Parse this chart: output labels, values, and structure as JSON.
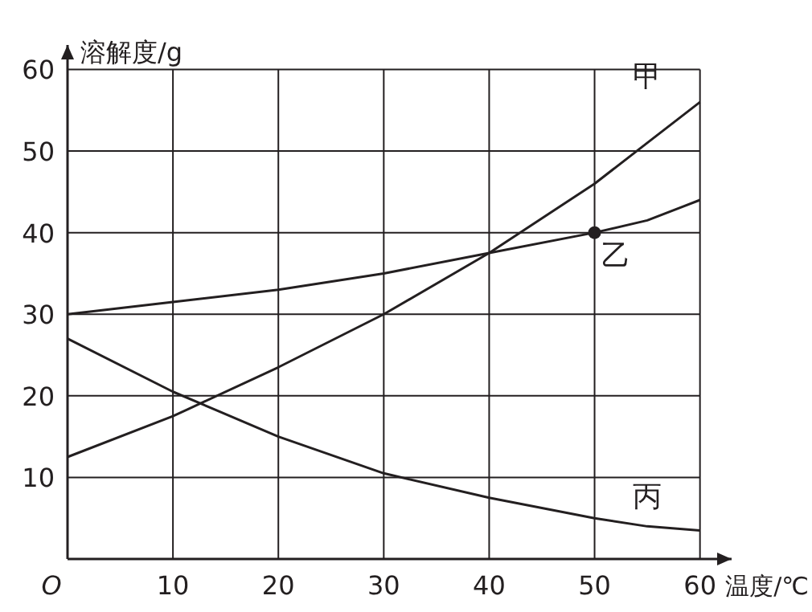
{
  "chart_data": {
    "type": "line",
    "ylabel": "溶解度/g",
    "xlabel": "温度/℃",
    "x": [
      0,
      10,
      20,
      30,
      40,
      50,
      55,
      60
    ],
    "series": [
      {
        "name": "甲",
        "color": "#231f20",
        "values": [
          12.5,
          17.5,
          23.5,
          30,
          37.5,
          46,
          51,
          56
        ]
      },
      {
        "name": "乙",
        "color": "#231f20",
        "values": [
          30,
          31.5,
          33,
          35,
          37.5,
          40,
          41.5,
          44
        ]
      },
      {
        "name": "丙",
        "color": "#231f20",
        "values": [
          27,
          20.5,
          15,
          10.5,
          7.5,
          5,
          4,
          3.5
        ]
      },
      {
        "type": "scatter",
        "color": "#231f20",
        "x": [
          50
        ],
        "values": [
          40
        ],
        "marker": "circle"
      }
    ],
    "xlim": [
      0,
      63
    ],
    "ylim": [
      0,
      63
    ],
    "xticks": [
      {
        "value": 0,
        "label": "O"
      },
      10,
      20,
      30,
      40,
      50,
      60
    ],
    "yticks": [
      10,
      20,
      30,
      40,
      50,
      60
    ],
    "grid": true,
    "legend": false,
    "marker": "none",
    "line_style": "solid"
  }
}
